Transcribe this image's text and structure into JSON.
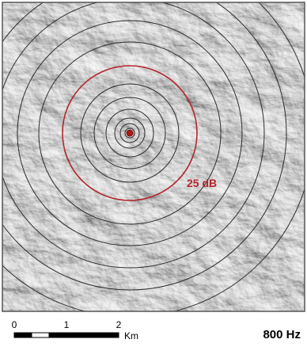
{
  "map": {
    "contour_label": "25 dB",
    "frequency_label": "800 Hz",
    "colors": {
      "highlight_ring": "#b3262d",
      "contour": "#2b2b2b",
      "source": "#b01818",
      "terrain_base": "#c9c9c9",
      "panel_border": "#555555"
    }
  },
  "scale_bar": {
    "tick_labels": [
      "0",
      "1",
      "2"
    ],
    "unit": "Km"
  }
}
